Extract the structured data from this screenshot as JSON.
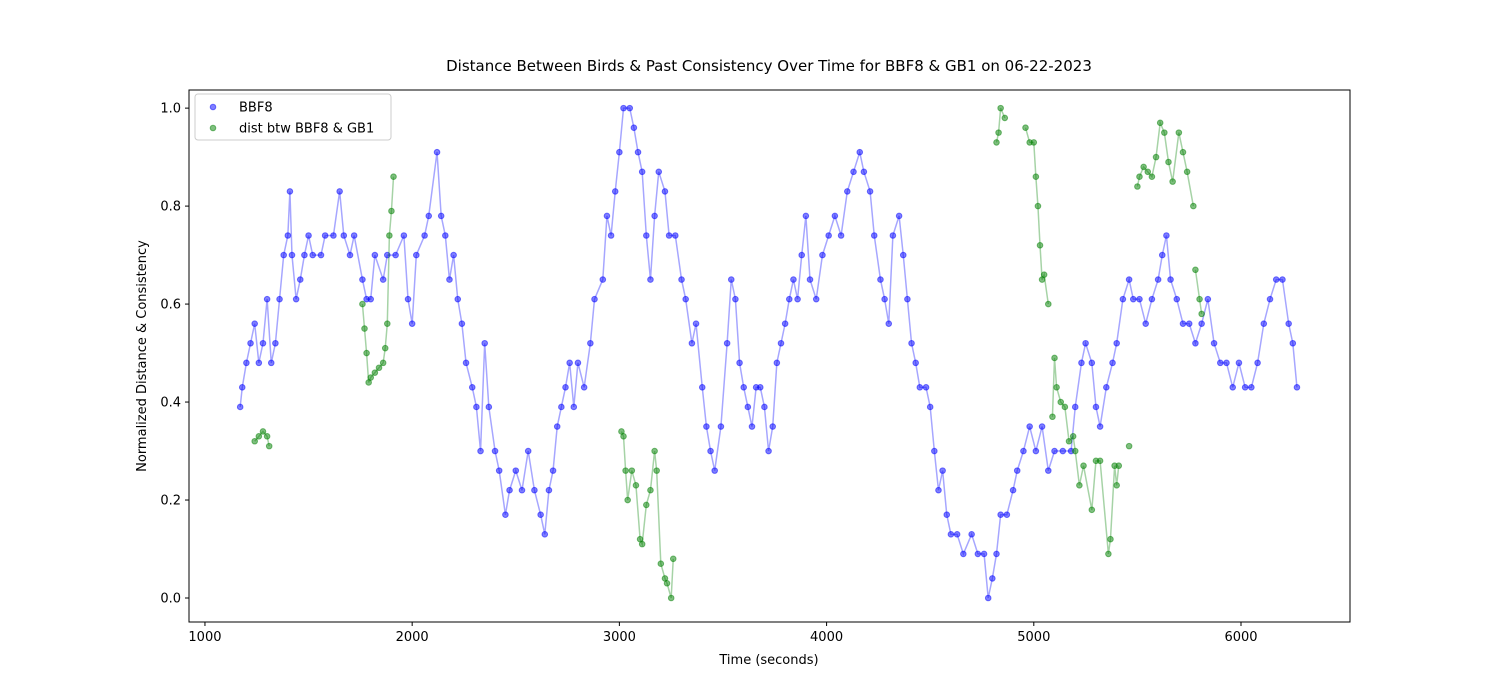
{
  "chart_data": {
    "type": "scatter",
    "title": "Distance Between Birds & Past Consistency Over Time for BBF8 & GB1 on 06-22-2023",
    "x_label": "Time (seconds)",
    "y_label": "Normalized Distance & Consistency",
    "xlim": [
      923,
      6526
    ],
    "ylim": [
      -0.049,
      1.037
    ],
    "xticks": [
      1000,
      2000,
      3000,
      4000,
      5000,
      6000
    ],
    "yticks": [
      {
        "value": 0,
        "label": "0.0"
      },
      0.2,
      0.4,
      0.6,
      0.8,
      {
        "value": 1,
        "label": "1.0"
      }
    ],
    "legend": "upper left",
    "connect": true,
    "alpha": 0.5,
    "series": [
      {
        "name": "BBF8",
        "color": "#0000ff",
        "x": [
          1170,
          1180,
          1200,
          1220,
          1240,
          1260,
          1280,
          1300,
          1320,
          1340,
          1360,
          1380,
          1400,
          1410,
          1420,
          1440,
          1460,
          1480,
          1500,
          1520,
          1560,
          1580,
          1620,
          1650,
          1670,
          1700,
          1720,
          1760,
          1780,
          1800,
          1820,
          1860,
          1880,
          1920,
          1960,
          1980,
          2000,
          2020,
          2060,
          2080,
          2120,
          2140,
          2160,
          2180,
          2200,
          2220,
          2240,
          2260,
          2290,
          2310,
          2330,
          2350,
          2370,
          2400,
          2420,
          2450,
          2470,
          2500,
          2530,
          2560,
          2590,
          2620,
          2640,
          2660,
          2680,
          2700,
          2720,
          2740,
          2760,
          2780,
          2800,
          2830,
          2860,
          2880,
          2920,
          2940,
          2960,
          2980,
          3000,
          3020,
          3050,
          3070,
          3090,
          3110,
          3130,
          3150,
          3170,
          3190,
          3220,
          3240,
          3270,
          3300,
          3320,
          3350,
          3370,
          3400,
          3420,
          3440,
          3460,
          3490,
          3520,
          3540,
          3560,
          3580,
          3600,
          3620,
          3640,
          3660,
          3680,
          3700,
          3720,
          3740,
          3760,
          3780,
          3800,
          3820,
          3840,
          3860,
          3880,
          3900,
          3920,
          3950,
          3980,
          4010,
          4040,
          4070,
          4100,
          4130,
          4160,
          4180,
          4210,
          4230,
          4260,
          4280,
          4300,
          4320,
          4350,
          4370,
          4390,
          4410,
          4430,
          4450,
          4480,
          4500,
          4520,
          4540,
          4560,
          4580,
          4600,
          4630,
          4660,
          4700,
          4730,
          4760,
          4780,
          4800,
          4820,
          4840,
          4870,
          4900,
          4920,
          4950,
          4980,
          5010,
          5040,
          5070,
          5100,
          5140,
          5180,
          5200,
          5230,
          5250,
          5280,
          5300,
          5320,
          5350,
          5380,
          5400,
          5430,
          5460,
          5480,
          5510,
          5540,
          5570,
          5600,
          5620,
          5640,
          5660,
          5690,
          5720,
          5750,
          5780,
          5810,
          5840,
          5870,
          5900,
          5930,
          5960,
          5990,
          6020,
          6050,
          6080,
          6110,
          6140,
          6170,
          6200,
          6230,
          6250,
          6270
        ],
        "values": [
          0.39,
          0.43,
          0.48,
          0.52,
          0.56,
          0.48,
          0.52,
          0.61,
          0.48,
          0.52,
          0.61,
          0.7,
          0.74,
          0.83,
          0.7,
          0.61,
          0.65,
          0.7,
          0.74,
          0.7,
          0.7,
          0.74,
          0.74,
          0.83,
          0.74,
          0.7,
          0.74,
          0.65,
          0.61,
          0.61,
          0.7,
          0.65,
          0.7,
          0.7,
          0.74,
          0.61,
          0.56,
          0.7,
          0.74,
          0.78,
          0.91,
          0.78,
          0.74,
          0.65,
          0.7,
          0.61,
          0.56,
          0.48,
          0.43,
          0.39,
          0.3,
          0.52,
          0.39,
          0.3,
          0.26,
          0.17,
          0.22,
          0.26,
          0.22,
          0.3,
          0.22,
          0.17,
          0.13,
          0.22,
          0.26,
          0.35,
          0.39,
          0.43,
          0.48,
          0.39,
          0.48,
          0.43,
          0.52,
          0.61,
          0.65,
          0.78,
          0.74,
          0.83,
          0.91,
          1.0,
          1.0,
          0.96,
          0.91,
          0.87,
          0.74,
          0.65,
          0.78,
          0.87,
          0.83,
          0.74,
          0.74,
          0.65,
          0.61,
          0.52,
          0.56,
          0.43,
          0.35,
          0.3,
          0.26,
          0.35,
          0.52,
          0.65,
          0.61,
          0.48,
          0.43,
          0.39,
          0.35,
          0.43,
          0.43,
          0.39,
          0.3,
          0.35,
          0.48,
          0.52,
          0.56,
          0.61,
          0.65,
          0.61,
          0.7,
          0.78,
          0.65,
          0.61,
          0.7,
          0.74,
          0.78,
          0.74,
          0.83,
          0.87,
          0.91,
          0.87,
          0.83,
          0.74,
          0.65,
          0.61,
          0.56,
          0.74,
          0.78,
          0.7,
          0.61,
          0.52,
          0.48,
          0.43,
          0.43,
          0.39,
          0.3,
          0.22,
          0.26,
          0.17,
          0.13,
          0.13,
          0.09,
          0.13,
          0.09,
          0.09,
          0.0,
          0.04,
          0.09,
          0.17,
          0.17,
          0.22,
          0.26,
          0.3,
          0.35,
          0.3,
          0.35,
          0.26,
          0.3,
          0.3,
          0.3,
          0.39,
          0.48,
          0.52,
          0.48,
          0.39,
          0.35,
          0.43,
          0.48,
          0.52,
          0.61,
          0.65,
          0.61,
          0.61,
          0.56,
          0.61,
          0.65,
          0.7,
          0.74,
          0.65,
          0.61,
          0.56,
          0.56,
          0.52,
          0.56,
          0.61,
          0.52,
          0.48,
          0.48,
          0.43,
          0.48,
          0.43,
          0.43,
          0.48,
          0.56,
          0.61,
          0.65,
          0.65,
          0.56,
          0.52,
          0.43
        ]
      },
      {
        "name": "dist btw BBF8 & GB1",
        "color": "#008000",
        "x": [
          1240,
          1260,
          1280,
          1300,
          1310,
          null,
          1760,
          1770,
          1780,
          1790,
          1800,
          1820,
          1840,
          1860,
          1870,
          1880,
          1890,
          1900,
          1910,
          null,
          3010,
          3020,
          3030,
          3040,
          3060,
          3080,
          3100,
          3110,
          3130,
          3150,
          3170,
          3180,
          3200,
          3220,
          3230,
          3250,
          3260,
          null,
          4820,
          4830,
          4840,
          4860,
          null,
          4960,
          4980,
          5000,
          5010,
          5020,
          5030,
          5040,
          5050,
          5070,
          null,
          5090,
          5100,
          5110,
          5130,
          5150,
          5170,
          5190,
          5200,
          5220,
          5240,
          5280,
          5300,
          5320,
          5360,
          5370,
          5390,
          5400,
          5410,
          null,
          5460,
          null,
          5500,
          5510,
          5530,
          5550,
          5570,
          5590,
          5610,
          5630,
          5650,
          5670,
          5700,
          5720,
          5740,
          5770,
          null,
          5780,
          5800,
          5810
        ],
        "values": [
          0.32,
          0.33,
          0.34,
          0.33,
          0.31,
          null,
          0.6,
          0.55,
          0.5,
          0.44,
          0.45,
          0.46,
          0.47,
          0.48,
          0.51,
          0.56,
          0.74,
          0.79,
          0.86,
          null,
          0.34,
          0.33,
          0.26,
          0.2,
          0.26,
          0.23,
          0.12,
          0.11,
          0.19,
          0.22,
          0.3,
          0.26,
          0.07,
          0.04,
          0.03,
          0.0,
          0.08,
          null,
          0.93,
          0.95,
          1.0,
          0.98,
          null,
          0.96,
          0.93,
          0.93,
          0.86,
          0.8,
          0.72,
          0.65,
          0.66,
          0.6,
          null,
          0.37,
          0.49,
          0.43,
          0.4,
          0.39,
          0.32,
          0.33,
          0.3,
          0.23,
          0.27,
          0.18,
          0.28,
          0.28,
          0.09,
          0.12,
          0.27,
          0.23,
          0.27,
          null,
          0.31,
          null,
          0.84,
          0.86,
          0.88,
          0.87,
          0.86,
          0.9,
          0.97,
          0.95,
          0.89,
          0.85,
          0.95,
          0.91,
          0.87,
          0.8,
          null,
          0.67,
          0.61,
          0.58
        ]
      }
    ]
  }
}
